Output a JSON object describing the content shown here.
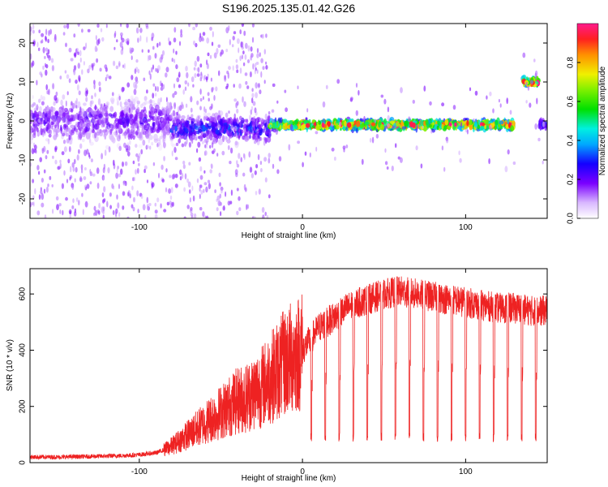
{
  "title": "S196.2025.135.01.42.G26",
  "chart_data": [
    {
      "type": "heatmap",
      "xlabel": "Height of straight line (km)",
      "ylabel": "Frequency (Hz)",
      "xlim": [
        -167,
        150
      ],
      "ylim": [
        -25,
        25
      ],
      "xticks": [
        -100,
        0,
        100
      ],
      "yticks": [
        -20,
        -10,
        0,
        10,
        20
      ],
      "xtick_labels": [
        "-100",
        "0",
        "100"
      ],
      "ytick_labels": [
        "-20",
        "-10",
        "0",
        "10",
        "20"
      ],
      "colorbar": {
        "label": "Normalized spectral amplitude",
        "range": [
          0,
          1
        ],
        "ticks": [
          0.0,
          0.2,
          0.4,
          0.6,
          0.8
        ],
        "tick_labels": [
          "0.0",
          "0.2",
          "0.4",
          "0.6",
          "0.8"
        ],
        "colormap": "rainbow (white-purple at 0 to magenta-red at 1)"
      },
      "ridges": [
        {
          "x_range": [
            -167,
            -80
          ],
          "freq_center": 0,
          "freq_spread": 5,
          "amplitude": 0.2
        },
        {
          "x_range": [
            -80,
            -20
          ],
          "freq_center": -2,
          "freq_spread": 3,
          "amplitude": 0.3
        },
        {
          "x_range": [
            -20,
            130
          ],
          "freq_center": -1,
          "freq_spread": 1,
          "amplitude": 0.85
        },
        {
          "x_range": [
            135,
            145
          ],
          "freq_center": 10,
          "freq_spread": 1,
          "amplitude": 0.9
        },
        {
          "x_range": [
            145,
            150
          ],
          "freq_center": -1,
          "freq_spread": 1,
          "amplitude": 0.3
        }
      ],
      "grid": false
    },
    {
      "type": "line",
      "xlabel": "Height of straight line (km)",
      "ylabel": "SNR (10 * v/v)",
      "xlim": [
        -167,
        150
      ],
      "ylim": [
        0,
        690
      ],
      "xticks": [
        -100,
        0,
        100
      ],
      "yticks": [
        0,
        200,
        400,
        600
      ],
      "xtick_labels": [
        "-100",
        "0",
        "100"
      ],
      "ytick_labels": [
        "0",
        "200",
        "400",
        "600"
      ],
      "color": "#ee2222",
      "series": [
        {
          "x": [
            -167,
            -150,
            -130,
            -110,
            -100,
            -90,
            -85,
            -80,
            -75,
            -70,
            -65,
            -60,
            -55,
            -50,
            -45,
            -40,
            -35,
            -30,
            -25,
            -20,
            -15,
            -10,
            -5,
            0,
            5,
            10,
            15,
            20,
            25,
            30,
            40,
            50,
            60,
            70,
            80,
            90,
            100,
            110,
            120,
            130,
            140,
            150
          ],
          "values": [
            20,
            20,
            22,
            25,
            28,
            35,
            45,
            60,
            80,
            100,
            120,
            140,
            160,
            180,
            200,
            220,
            230,
            250,
            270,
            300,
            330,
            360,
            380,
            400,
            440,
            480,
            500,
            520,
            540,
            560,
            580,
            600,
            610,
            600,
            590,
            580,
            570,
            560,
            550,
            550,
            540,
            540
          ]
        }
      ],
      "dip_level": 90,
      "dip_start_x": 5,
      "dip_period_km": 8.6,
      "grid": false
    }
  ]
}
